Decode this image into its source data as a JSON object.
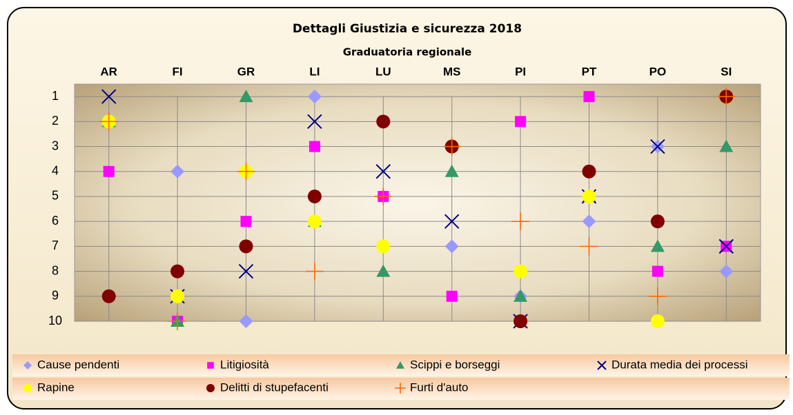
{
  "chart_data": {
    "type": "dot",
    "title": "Dettagli Giustizia e sicurezza 2018",
    "subtitle": "Graduatoria regionale",
    "categories": [
      "AR",
      "FI",
      "GR",
      "LI",
      "LU",
      "MS",
      "PI",
      "PT",
      "PO",
      "SI"
    ],
    "ylim": [
      0.5,
      10
    ],
    "yticks": [
      1,
      2,
      3,
      4,
      5,
      6,
      7,
      8,
      9,
      10
    ],
    "y_inverted": true,
    "grid": true,
    "legend": "bottom",
    "series": [
      {
        "name": "Cause pendenti",
        "color": "#9999ff",
        "marker": "diamond",
        "values": [
          2,
          4,
          10,
          1,
          5,
          7,
          9,
          6,
          3,
          8
        ]
      },
      {
        "name": "Litigiosità",
        "color": "#ff00ff",
        "marker": "square",
        "values": [
          4,
          10,
          6,
          3,
          5,
          9,
          2,
          1,
          8,
          7
        ]
      },
      {
        "name": "Scippi e borseggi",
        "color": "#339966",
        "marker": "triangle",
        "values": [
          2,
          10,
          1,
          6,
          8,
          4,
          9,
          5,
          7,
          3
        ]
      },
      {
        "name": "Durata media dei processi",
        "color": "#000080",
        "marker": "x",
        "values": [
          1,
          9,
          8,
          2,
          4,
          6,
          10,
          5,
          3,
          7
        ]
      },
      {
        "name": "Rapine",
        "color": "#ffff00",
        "marker": "circle",
        "values": [
          2,
          9,
          4,
          6,
          7,
          3,
          8,
          5,
          10,
          1
        ]
      },
      {
        "name": "Delitti di stupefacenti",
        "color": "#800000",
        "marker": "circle",
        "values": [
          9,
          8,
          7,
          5,
          2,
          3,
          10,
          4,
          6,
          1
        ]
      },
      {
        "name": "Furti d'auto",
        "color": "#ff6600",
        "marker": "plus",
        "values": [
          2,
          10,
          4,
          8,
          5,
          3,
          6,
          7,
          9,
          1
        ]
      }
    ]
  }
}
